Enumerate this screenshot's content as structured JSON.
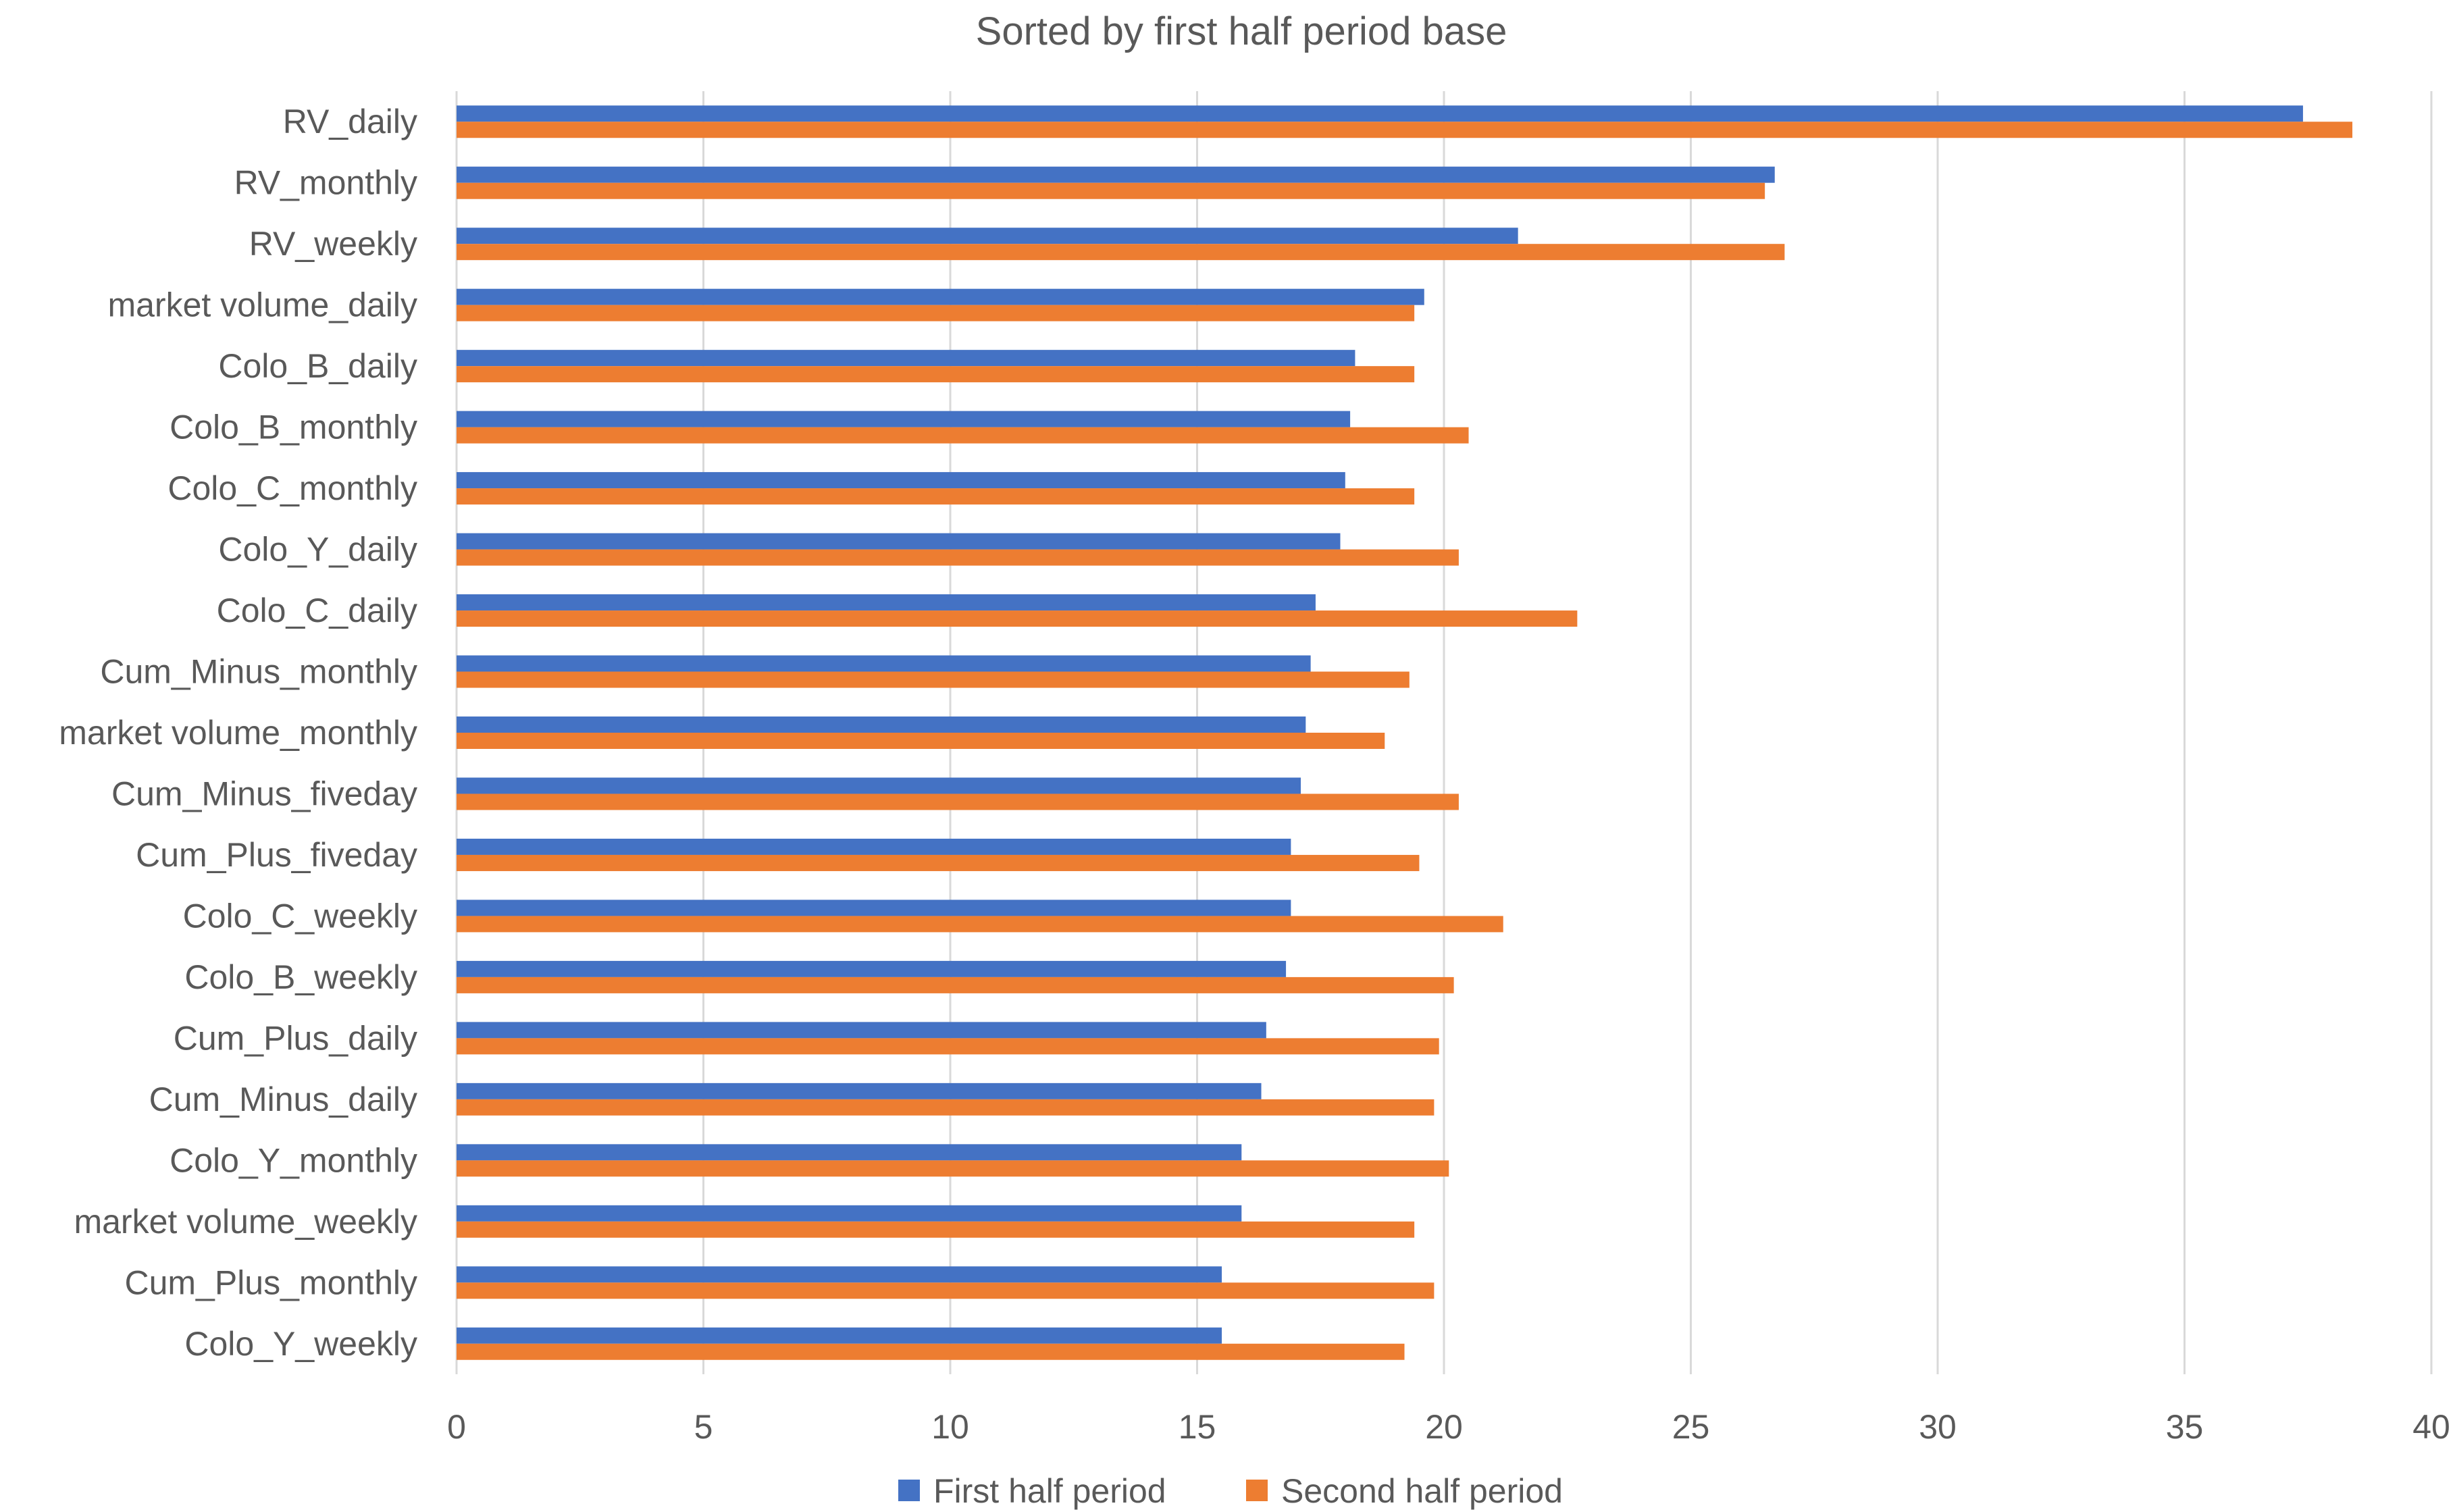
{
  "chart_data": {
    "type": "bar",
    "orientation": "horizontal",
    "title": "Sorted by first half period base",
    "xlabel": "",
    "ylabel": "",
    "xlim": [
      0,
      40
    ],
    "ticks": [
      0,
      5,
      10,
      15,
      20,
      25,
      30,
      35,
      40
    ],
    "grid": true,
    "legend_position": "bottom",
    "categories": [
      "RV_daily",
      "RV_monthly",
      "RV_weekly",
      "market volume_daily",
      "Colo_B_daily",
      "Colo_B_monthly",
      "Colo_C_monthly",
      "Colo_Y_daily",
      "Colo_C_daily",
      "Cum_Minus_monthly",
      "market volume_monthly",
      "Cum_Minus_fiveday",
      "Cum_Plus_fiveday",
      "Colo_C_weekly",
      "Colo_B_weekly",
      "Cum_Plus_daily",
      "Cum_Minus_daily",
      "Colo_Y_monthly",
      "market volume_weekly",
      "Cum_Plus_monthly",
      "Colo_Y_weekly"
    ],
    "series": [
      {
        "name": "First half period",
        "color": "#4472c4",
        "values": [
          37.4,
          26.7,
          21.5,
          19.6,
          18.2,
          18.1,
          18.0,
          17.9,
          17.4,
          17.3,
          17.2,
          17.1,
          16.9,
          16.9,
          16.8,
          16.4,
          16.3,
          15.9,
          15.9,
          15.5,
          15.5
        ]
      },
      {
        "name": "Second half period",
        "color": "#ed7d31",
        "values": [
          38.4,
          26.5,
          26.9,
          19.4,
          19.4,
          20.5,
          19.4,
          20.3,
          22.7,
          19.3,
          18.8,
          20.3,
          19.5,
          21.2,
          20.2,
          19.9,
          19.8,
          20.1,
          19.4,
          19.8,
          19.2
        ]
      }
    ]
  }
}
